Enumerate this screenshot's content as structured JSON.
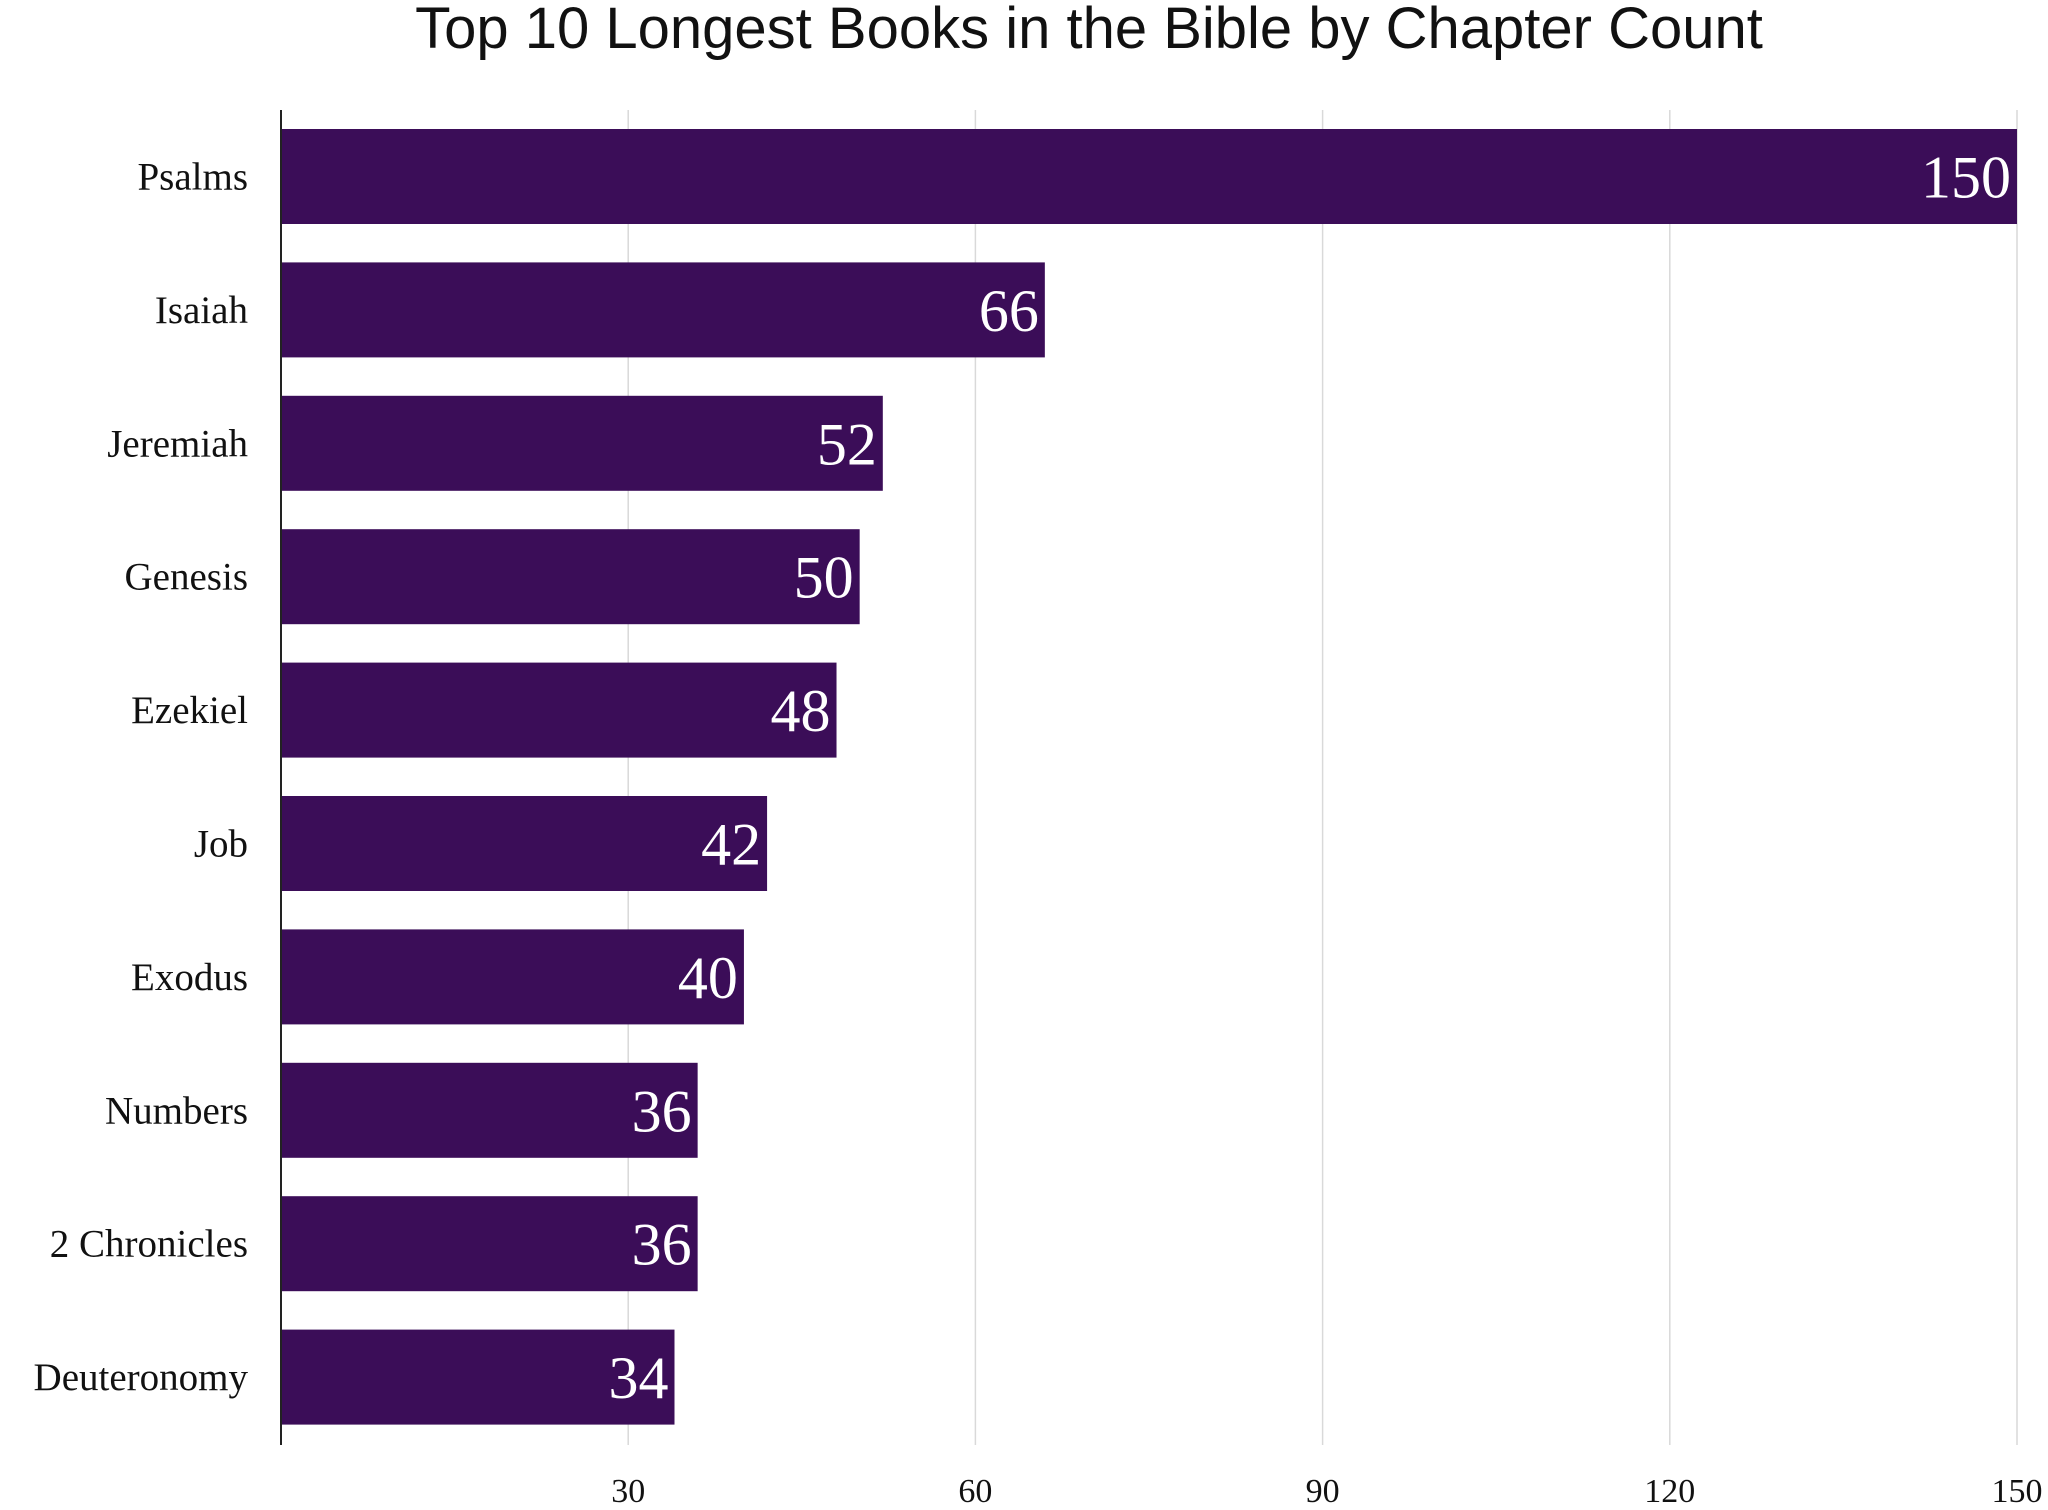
{
  "chart_data": {
    "type": "bar",
    "orientation": "horizontal",
    "title": "Top 10 Longest Books in the Bible by Chapter Count",
    "xlabel": "",
    "ylabel": "",
    "categories": [
      "Psalms",
      "Isaiah",
      "Jeremiah",
      "Genesis",
      "Ezekiel",
      "Job",
      "Exodus",
      "Numbers",
      "2 Chronicles",
      "Deuteronomy"
    ],
    "values": [
      150,
      66,
      52,
      50,
      48,
      42,
      40,
      36,
      36,
      34
    ],
    "data_labels": [
      "150",
      "66",
      "52",
      "50",
      "48",
      "42",
      "40",
      "36",
      "36",
      "34"
    ],
    "xlim": [
      0,
      150
    ],
    "xticks": [
      30,
      60,
      90,
      120,
      150
    ],
    "xtick_labels": [
      "30",
      "60",
      "90",
      "120",
      "150"
    ],
    "grid": true,
    "legend": "none",
    "colors": {
      "bar": "#3b0d58",
      "grid": "#d9d9d9",
      "axis": "#222222",
      "value_text": "#ffffff"
    }
  }
}
